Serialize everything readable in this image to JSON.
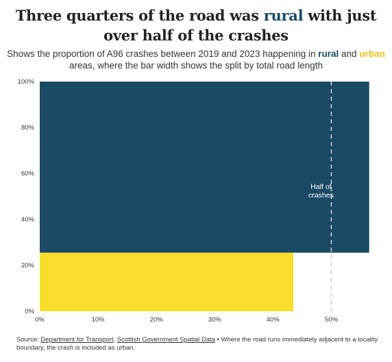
{
  "title": {
    "part1": "Three quarters of the road was ",
    "highlight": "rural",
    "part2": " with just over half of the crashes"
  },
  "subtitle": {
    "part1": "Shows the proportion of A96 crashes between 2019 and 2023 happening in ",
    "rural": "rural",
    "part2": " and ",
    "urban": "urban",
    "part3": " areas, where the bar width shows the split by total road length"
  },
  "colors": {
    "rural": "#1b4a66",
    "urban": "#f9de2b",
    "reference": "#bfcfd9"
  },
  "chart_data": {
    "type": "bar",
    "categories": [
      "rural",
      "urban"
    ],
    "series": [
      {
        "name": "rural",
        "x_start": 0,
        "x_end": 56.5,
        "y_start": 25.5,
        "y_end": 100
      },
      {
        "name": "urban",
        "x_start": 0,
        "x_end": 43.5,
        "y_start": 0,
        "y_end": 25.5
      }
    ],
    "xlim": [
      0,
      57
    ],
    "ylim": [
      0,
      100
    ],
    "x_ticks": [
      "0%",
      "10%",
      "20%",
      "30%",
      "40%",
      "50%"
    ],
    "y_ticks": [
      "0%",
      "20%",
      "40%",
      "60%",
      "80%",
      "100%"
    ],
    "reference_line": {
      "x": 50,
      "label_line1": "Half of",
      "label_line2": "crashes"
    }
  },
  "source": {
    "prefix": "Source: ",
    "link1": "Department for Transport",
    "sep": ", ",
    "link2": "Scottish Government Spatial Data",
    "note": " • Where the road runs immediately adjacent to a locality boundary, the crash is included as urban."
  }
}
